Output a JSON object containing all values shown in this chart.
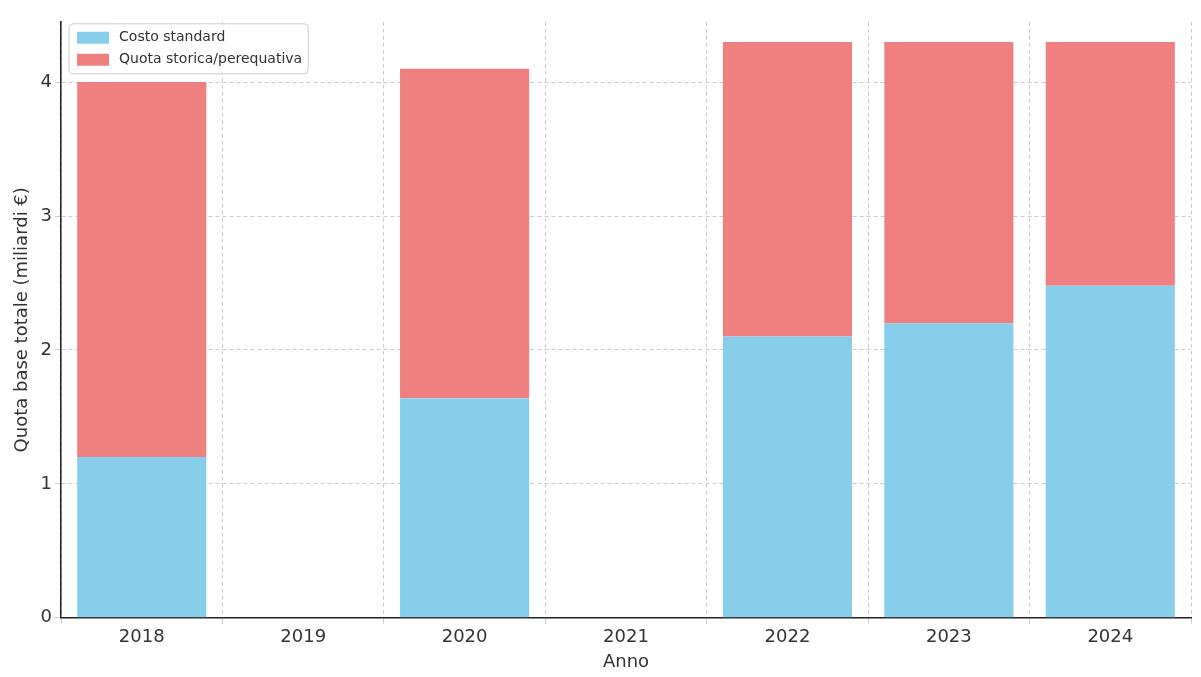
{
  "chart_data": {
    "type": "bar",
    "stacked": true,
    "xlabel": "Anno",
    "ylabel": "Quota base totale (miliardi €)",
    "categories": [
      "2018",
      "2019",
      "2020",
      "2021",
      "2022",
      "2023",
      "2024"
    ],
    "series": [
      {
        "name": "Costo standard",
        "color": "#87ceeb",
        "values": [
          1.2,
          null,
          1.64,
          null,
          2.1,
          2.2,
          2.48
        ]
      },
      {
        "name": "Quota storica/perequativa",
        "color": "#f08080",
        "values": [
          2.8,
          null,
          2.46,
          null,
          2.2,
          2.1,
          1.82
        ]
      }
    ],
    "ylim": [
      0,
      4.45
    ],
    "yticks": [
      0,
      1,
      2,
      3,
      4
    ],
    "grid": true,
    "legend": "top left"
  }
}
